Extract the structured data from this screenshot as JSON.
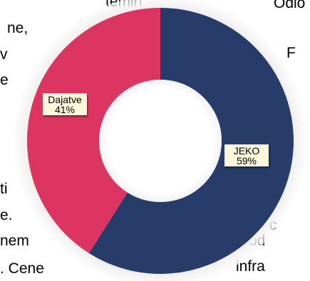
{
  "background_text": [
    "temin",
    "ne,",
    "v",
    "e",
    "ti",
    "e.",
    "nem",
    ". Cene",
    "Odlo",
    "F",
    "c",
    "od",
    "infra"
  ],
  "chart_data": {
    "type": "pie",
    "donut": true,
    "start_angle_deg": 0,
    "direction": "clockwise",
    "slices": [
      {
        "label": "JEKO",
        "value": 59,
        "value_label": "59%",
        "color": "#273c69"
      },
      {
        "label": "Dajatve",
        "value": 41,
        "value_label": "41%",
        "color": "#dc3561"
      }
    ],
    "title": "",
    "legend": "none"
  },
  "colors": {
    "ring_shadow": "#ececec",
    "hole": "#ffffff",
    "label_box": "#fbf7dc"
  }
}
